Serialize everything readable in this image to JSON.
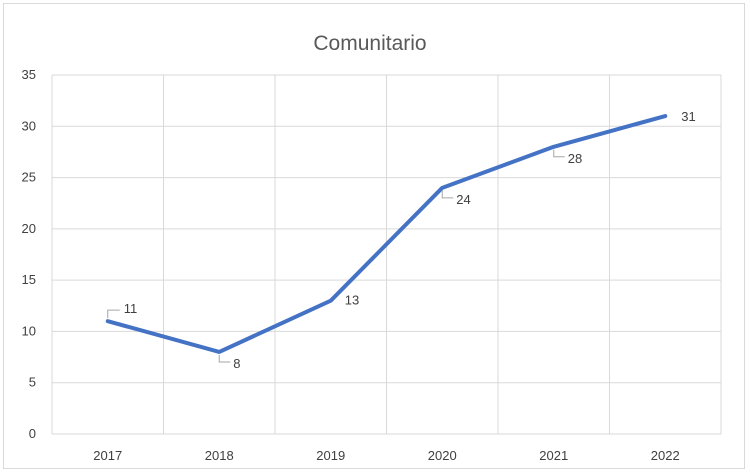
{
  "chart_data": {
    "type": "line",
    "title": "Comunitario",
    "xlabel": "",
    "ylabel": "",
    "categories": [
      "2017",
      "2018",
      "2019",
      "2020",
      "2021",
      "2022"
    ],
    "series": [
      {
        "values": [
          11,
          8,
          13,
          24,
          28,
          31
        ],
        "color": "#4472c4"
      }
    ],
    "ylim": [
      0,
      35
    ],
    "yticks": [
      0,
      5,
      10,
      15,
      20,
      25,
      30,
      35
    ],
    "grid": true,
    "legend": "none",
    "data_labels": true
  }
}
